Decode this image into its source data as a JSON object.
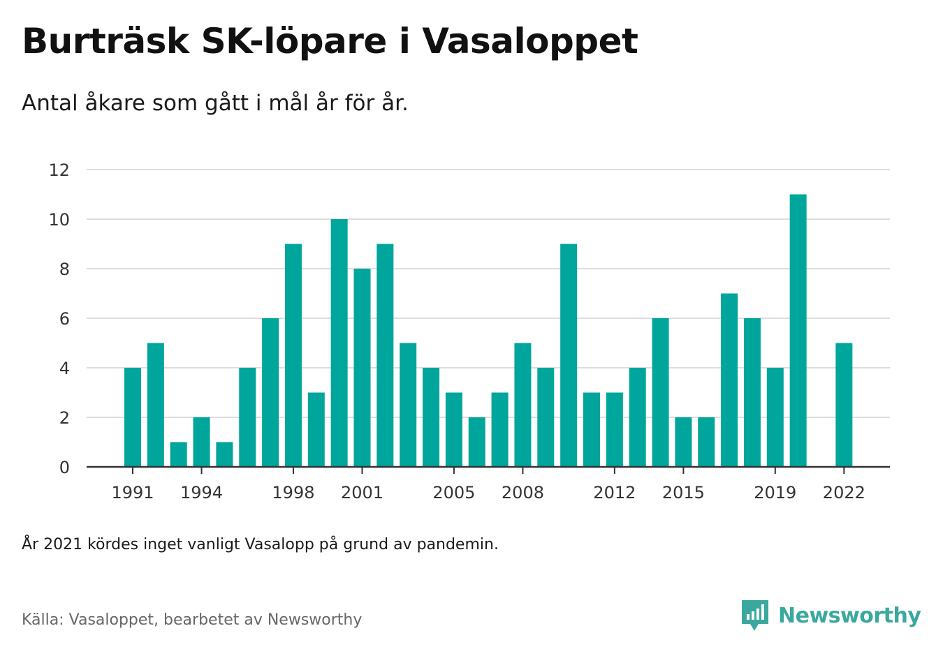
{
  "title": "Burträsk SK-löpare i Vasaloppet",
  "subtitle": "Antal åkare som gått i mål år för år.",
  "note": "År 2021 kördes inget vanligt Vasalopp på grund av pandemin.",
  "source": "Källa: Vasaloppet, bearbetet av Newsworthy",
  "brand": {
    "name": "Newsworthy",
    "icon": "newsworthy-logo-icon",
    "color": "#3aa89e"
  },
  "colors": {
    "bar": "#00a59b",
    "grid": "#dddddd",
    "axis": "#333333"
  },
  "chart_data": {
    "type": "bar",
    "x": [
      1991,
      1992,
      1993,
      1994,
      1995,
      1996,
      1997,
      1998,
      1999,
      2000,
      2001,
      2002,
      2003,
      2004,
      2005,
      2006,
      2007,
      2008,
      2009,
      2010,
      2011,
      2012,
      2013,
      2014,
      2015,
      2016,
      2017,
      2018,
      2019,
      2020,
      2021,
      2022
    ],
    "values": [
      4,
      5,
      1,
      2,
      1,
      4,
      6,
      9,
      3,
      10,
      8,
      9,
      5,
      4,
      3,
      2,
      3,
      5,
      4,
      9,
      3,
      3,
      4,
      6,
      2,
      2,
      7,
      6,
      4,
      11,
      null,
      5
    ],
    "x_tick_labels": [
      "1991",
      "1994",
      "1998",
      "2001",
      "2005",
      "2008",
      "2012",
      "2015",
      "2019",
      "2022"
    ],
    "y_ticks": [
      0,
      2,
      4,
      6,
      8,
      10,
      12
    ],
    "ylim": [
      0,
      12
    ],
    "grid": true,
    "legend": "none",
    "xlabel": "",
    "ylabel": ""
  }
}
